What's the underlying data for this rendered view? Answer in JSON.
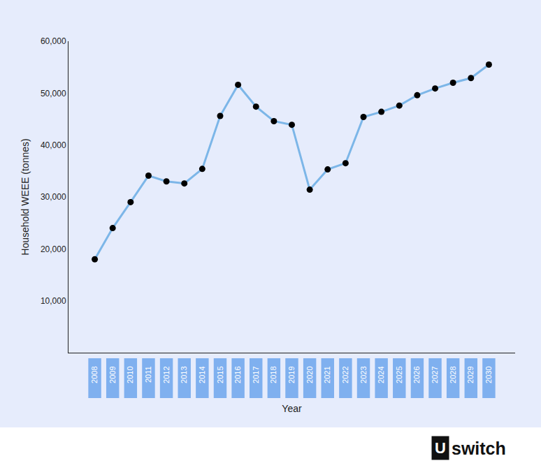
{
  "chart_data": {
    "type": "line",
    "x_label": "Year",
    "y_label": "Household WEEE (tonnes)",
    "categories": [
      "2008",
      "2009",
      "2010",
      "2011",
      "2012",
      "2013",
      "2014",
      "2015",
      "2016",
      "2017",
      "2018",
      "2019",
      "2020",
      "2021",
      "2022",
      "2023",
      "2024",
      "2025",
      "2026",
      "2027",
      "2028",
      "2029",
      "2030"
    ],
    "values": [
      18000,
      24000,
      29000,
      34100,
      33000,
      32600,
      35400,
      45600,
      51600,
      47400,
      44600,
      43900,
      31400,
      35300,
      36500,
      45400,
      46400,
      47600,
      49600,
      50900,
      52000,
      52900,
      55500
    ],
    "color": "#7cb6e8",
    "marker": "circle",
    "line_style": "solid",
    "ylim": [
      0,
      60000
    ],
    "yticks": [
      {
        "value": 10000,
        "label": "10,000"
      },
      {
        "value": 20000,
        "label": "20,000"
      },
      {
        "value": 30000,
        "label": "30,000"
      },
      {
        "value": 40000,
        "label": "40,000"
      },
      {
        "value": 50000,
        "label": "50,000"
      },
      {
        "value": 60000,
        "label": "60,000"
      }
    ],
    "grid": false,
    "logo": {
      "mark": "U",
      "text": "switch"
    }
  }
}
